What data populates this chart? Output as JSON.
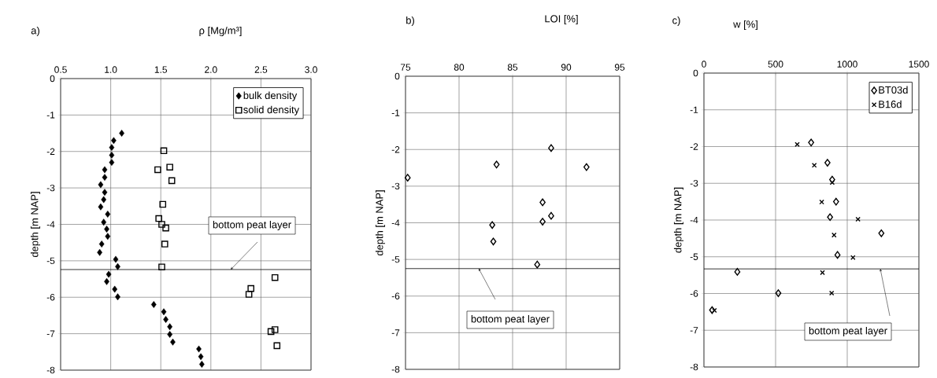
{
  "chart_data": [
    {
      "type": "scatter",
      "title": "a)",
      "xlabel": "ρ [Mg/m³]",
      "ylabel": "depth [m  NAP]",
      "xlim": [
        0.5,
        3.0
      ],
      "ylim": [
        -8,
        0
      ],
      "xticks": [
        {
          "value": 0.5,
          "label": "0.5"
        },
        {
          "value": 1.0,
          "label": "1.0"
        },
        {
          "value": 1.5,
          "label": "1.5"
        },
        {
          "value": 2.0,
          "label": "2.0"
        },
        {
          "value": 2.5,
          "label": "2.5"
        },
        {
          "value": 3.0,
          "label": "3.0"
        }
      ],
      "yticks": [
        0,
        -1,
        -2,
        -3,
        -4,
        -5,
        -6,
        -7,
        -8
      ],
      "grid": true,
      "legend": "top right",
      "series": [
        {
          "name": "bulk density",
          "color": "#000000",
          "marker": "diamond",
          "x": [
            1.11,
            1.03,
            1.01,
            1.01,
            1.01,
            0.94,
            0.94,
            0.9,
            0.94,
            0.93,
            0.9,
            0.97,
            0.93,
            0.96,
            0.97,
            0.91,
            0.89,
            1.05,
            1.07,
            0.98,
            0.96,
            1.04,
            1.07,
            1.43,
            1.53,
            1.55,
            1.59,
            1.59,
            1.62,
            1.88,
            1.9,
            1.91
          ],
          "values": [
            -1.5,
            -1.7,
            -1.89,
            -2.1,
            -2.3,
            -2.5,
            -2.71,
            -2.91,
            -3.12,
            -3.32,
            -3.52,
            -3.72,
            -3.94,
            -4.13,
            -4.33,
            -4.54,
            -4.77,
            -4.96,
            -5.16,
            -5.37,
            -5.57,
            -5.78,
            -5.99,
            -6.2,
            -6.4,
            -6.61,
            -6.81,
            -7.02,
            -7.23,
            -7.42,
            -7.63,
            -7.84
          ]
        },
        {
          "name": "solid density",
          "color": "#000000",
          "marker": "square",
          "x": [
            1.53,
            1.47,
            1.59,
            1.61,
            1.52,
            1.48,
            1.51,
            1.55,
            1.54,
            1.51,
            2.64,
            2.4,
            2.38,
            2.64,
            2.6,
            2.66
          ],
          "values": [
            -1.98,
            -2.5,
            -2.43,
            -2.8,
            -3.45,
            -3.84,
            -4.0,
            -4.1,
            -4.54,
            -5.17,
            -5.46,
            -5.76,
            -5.92,
            -6.89,
            -6.94,
            -7.33
          ]
        }
      ],
      "ref_lines": [
        {
          "axis": "y",
          "value": -5.24,
          "label": "bottom peat layer",
          "color": "#000000"
        }
      ]
    },
    {
      "type": "scatter",
      "title": "b)",
      "xlabel": "LOI [%]",
      "ylabel": "depth [m  NAP]",
      "xlim": [
        75,
        95
      ],
      "ylim": [
        -8,
        0
      ],
      "xticks": [
        75,
        80,
        85,
        90,
        95
      ],
      "yticks": [
        0,
        -1,
        -2,
        -3,
        -4,
        -5,
        -6,
        -7,
        -8
      ],
      "grid": true,
      "series": [
        {
          "color": "#000000",
          "marker": "diamond",
          "x": [
            75.2,
            83.5,
            88.6,
            91.9,
            87.8,
            88.6,
            87.8,
            83.1,
            83.2,
            87.3
          ],
          "values": [
            -2.77,
            -2.41,
            -1.96,
            -2.48,
            -3.44,
            -3.81,
            -3.97,
            -4.06,
            -4.51,
            -5.14
          ]
        }
      ],
      "ref_lines": [
        {
          "axis": "y",
          "value": -5.25,
          "label": "bottom peat layer",
          "color": "#000000"
        }
      ]
    },
    {
      "type": "scatter",
      "title": "c)",
      "xlabel": "w [%]",
      "ylabel": "depth [m  NAP]",
      "xlim": [
        0,
        1500
      ],
      "ylim": [
        -8,
        0
      ],
      "xticks": [
        0,
        500,
        1000,
        1500
      ],
      "yticks": [
        0,
        -1,
        -2,
        -3,
        -4,
        -5,
        -6,
        -7,
        -8
      ],
      "grid": true,
      "legend": "top right",
      "series": [
        {
          "name": "BT03d",
          "color": "#000000",
          "marker": "diamond",
          "x": [
            748,
            862,
            895,
            922,
            880,
            1238,
            932,
            233,
            519,
            57
          ],
          "values": [
            -1.89,
            -2.44,
            -2.9,
            -3.5,
            -3.92,
            -4.36,
            -4.95,
            -5.41,
            -5.99,
            -6.45
          ]
        },
        {
          "name": "B16d",
          "color": "#000000",
          "marker": "cross",
          "x": [
            651,
            770,
            895,
            822,
            1075,
            908,
            1040,
            827,
            891,
            73
          ],
          "values": [
            -1.94,
            -2.51,
            -2.98,
            -3.51,
            -3.98,
            -4.41,
            -5.02,
            -5.43,
            -5.99,
            -6.46
          ]
        }
      ],
      "ref_lines": [
        {
          "axis": "y",
          "value": -5.33,
          "label": "bottom peat layer",
          "color": "#000000"
        }
      ]
    }
  ]
}
